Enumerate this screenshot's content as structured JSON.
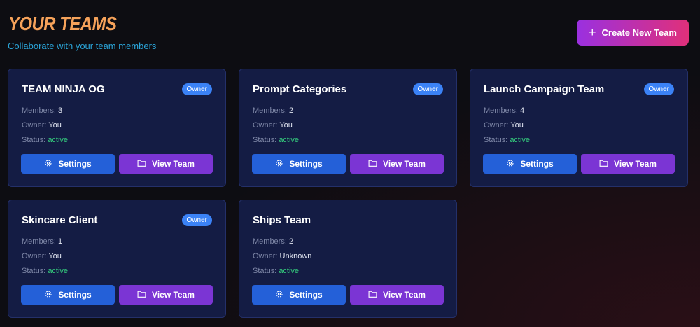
{
  "header": {
    "title": "YOUR TEAMS",
    "subtitle": "Collaborate with your team members",
    "create_label": "Create New Team"
  },
  "labels": {
    "members": "Members:",
    "owner": "Owner:",
    "status": "Status:",
    "settings": "Settings",
    "view": "View Team"
  },
  "colors": {
    "active": "#35d07f",
    "settings": "#2460d8",
    "view": "#7b35d4",
    "badge": "#3b82f6"
  },
  "teams": [
    {
      "name": "TEAM NINJA OG",
      "badge": "Owner",
      "members": "3",
      "owner": "You",
      "status": "active"
    },
    {
      "name": "Prompt Categories",
      "badge": "Owner",
      "members": "2",
      "owner": "You",
      "status": "active"
    },
    {
      "name": "Launch Campaign Team",
      "badge": "Owner",
      "members": "4",
      "owner": "You",
      "status": "active"
    },
    {
      "name": "Skincare Client",
      "badge": "Owner",
      "members": "1",
      "owner": "You",
      "status": "active"
    },
    {
      "name": "Ships Team",
      "badge": "",
      "members": "2",
      "owner": "Unknown",
      "status": "active"
    }
  ]
}
